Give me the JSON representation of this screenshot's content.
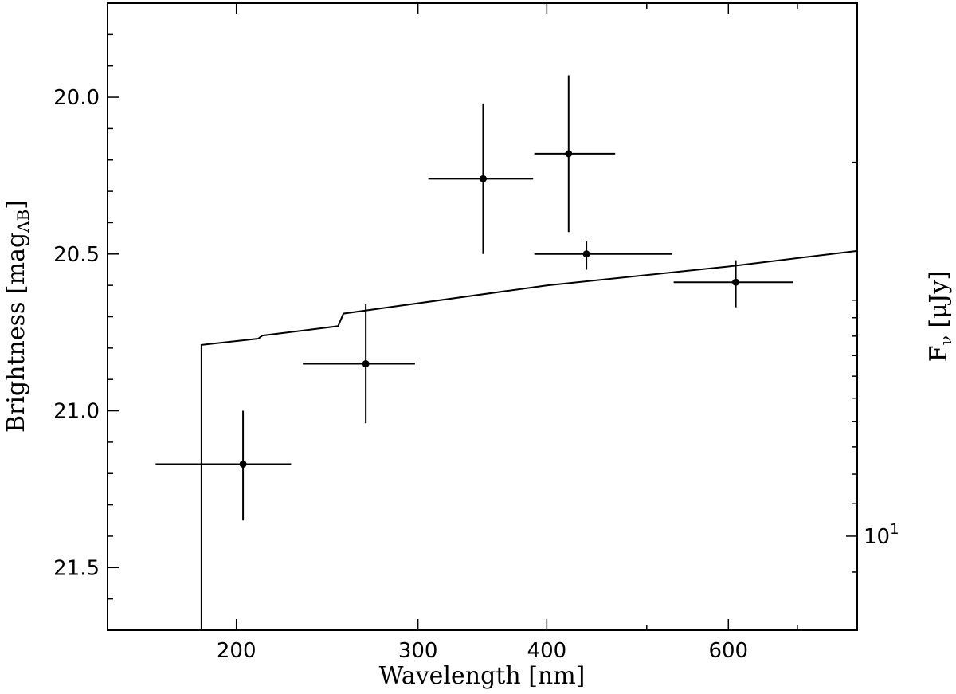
{
  "chart_data": {
    "type": "scatter",
    "xlabel": "Wavelength [nm]",
    "ylabel": "Brightness [mag_AB]",
    "ylabel_main": "Brightness ",
    "ylabel_unit_open": "[mag",
    "ylabel_unit_sub": "AB",
    "ylabel_unit_close": "]",
    "y2label": "F_ν [μJy]",
    "y2label_main": "F",
    "y2label_sub": "ν",
    "y2label_unit": " [μJy]",
    "x_scale": "log",
    "x_lim": [
      150,
      800
    ],
    "y_lim": [
      21.7,
      19.7
    ],
    "y_inverted": true,
    "x_ticks": [
      200,
      300,
      400,
      600
    ],
    "x_tick_labels": [
      "200",
      "300",
      "400",
      "600"
    ],
    "y_ticks": [
      20.0,
      20.5,
      21.0,
      21.5
    ],
    "y_tick_labels": [
      "20.0",
      "20.5",
      "21.0",
      "21.5"
    ],
    "y2_tick_labels": [
      {
        "base": "10",
        "exp": "1"
      }
    ],
    "grid": false,
    "points": [
      {
        "x": 203,
        "y": 21.17,
        "xerr": [
          167,
          226
        ],
        "yerr": [
          21.0,
          21.35
        ]
      },
      {
        "x": 267,
        "y": 20.85,
        "xerr": [
          232,
          298
        ],
        "yerr": [
          20.66,
          21.04
        ]
      },
      {
        "x": 347,
        "y": 20.26,
        "xerr": [
          307,
          388
        ],
        "yerr": [
          20.02,
          20.5
        ]
      },
      {
        "x": 420,
        "y": 20.18,
        "xerr": [
          389,
          466
        ],
        "yerr": [
          19.93,
          20.43
        ]
      },
      {
        "x": 437,
        "y": 20.5,
        "xerr": [
          389,
          529
        ],
        "yerr": [
          20.46,
          20.55
        ]
      },
      {
        "x": 610,
        "y": 20.59,
        "xerr": [
          531,
          693
        ],
        "yerr": [
          20.52,
          20.67
        ]
      }
    ],
    "model_line": [
      [
        185,
        21.7
      ],
      [
        185,
        20.79
      ],
      [
        210,
        20.77
      ],
      [
        212,
        20.76
      ],
      [
        251,
        20.73
      ],
      [
        254,
        20.69
      ],
      [
        400,
        20.6
      ],
      [
        600,
        20.54
      ],
      [
        800,
        20.49
      ]
    ]
  }
}
